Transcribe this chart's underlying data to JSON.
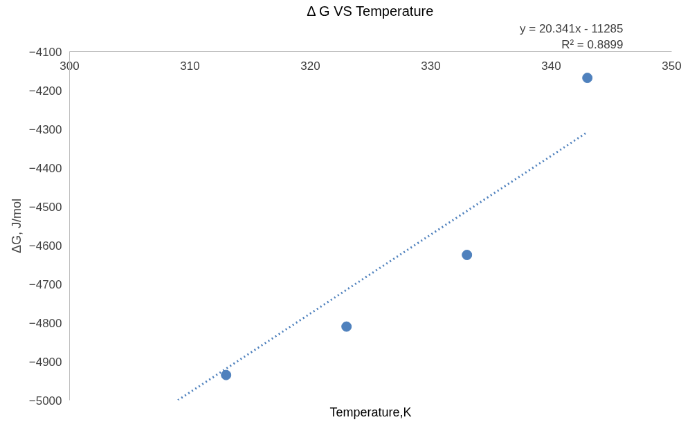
{
  "chart_data": {
    "type": "scatter",
    "title": "Δ G VS Temperature",
    "xlabel": "Temperature,K",
    "ylabel": "ΔG, J/mol",
    "annotations": [
      "y = 20.341x - 11285",
      "R² = 0.8899"
    ],
    "series": [
      {
        "color": "#4f81bd",
        "x": [
          313,
          323,
          333,
          343
        ],
        "values": [
          -4935,
          -4810,
          -4625,
          -4168
        ],
        "marker": "circle"
      },
      {
        "type": "line",
        "color": "#4f81bd",
        "x": [
          309,
          343
        ],
        "values": [
          -5000,
          -4308
        ],
        "line_style": "dotted"
      }
    ],
    "xlim": [
      300,
      350
    ],
    "ylim": [
      -5000,
      -4100
    ],
    "xticks": [
      300,
      310,
      320,
      330,
      340,
      350
    ],
    "yticks": [
      -5000,
      -4900,
      -4800,
      -4700,
      -4600,
      -4500,
      -4400,
      -4300,
      -4200,
      -4100
    ],
    "grid": false
  }
}
